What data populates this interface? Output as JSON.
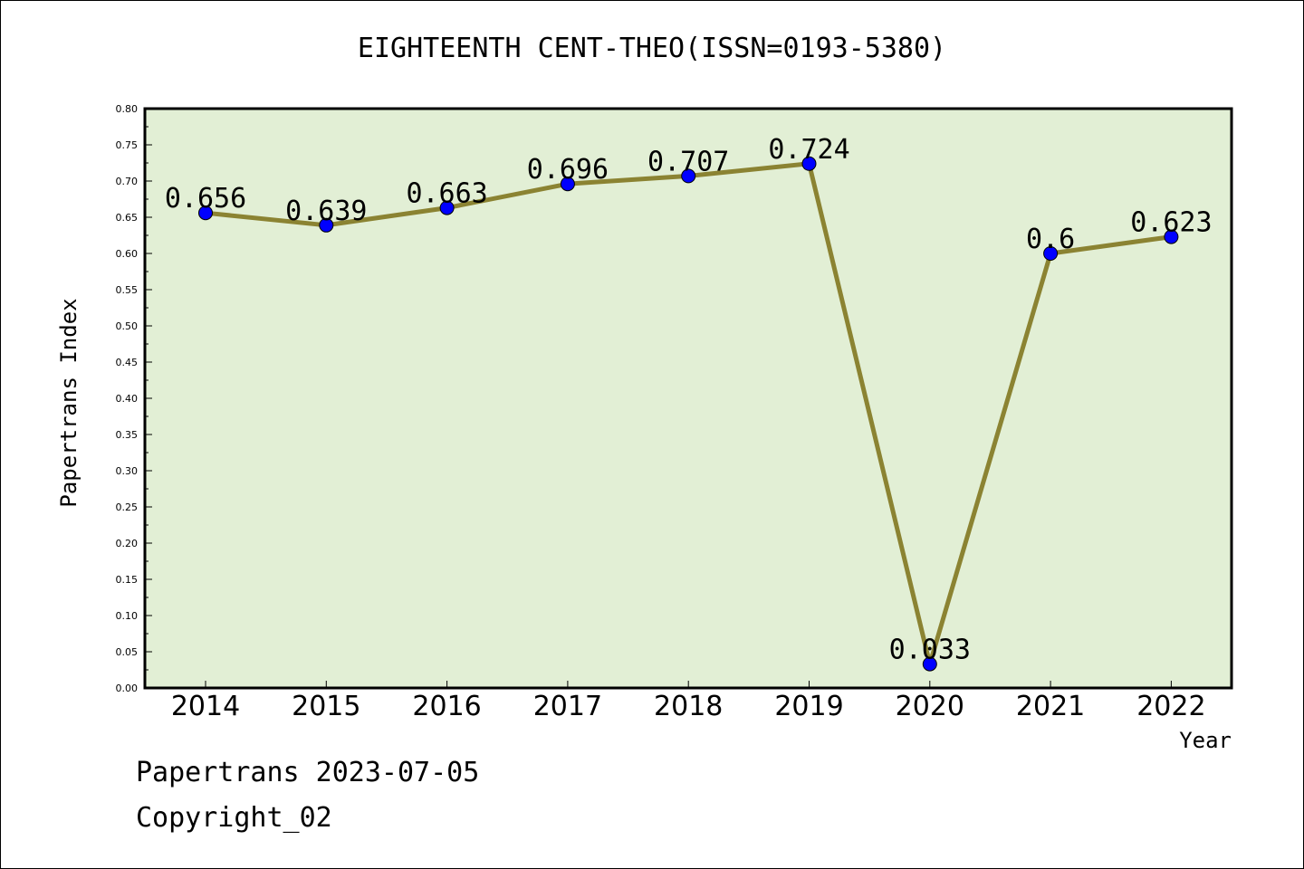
{
  "chart_data": {
    "type": "line",
    "title": "EIGHTEENTH CENT-THEO(ISSN=0193-5380)",
    "xlabel": "Year",
    "ylabel": "Papertrans Index",
    "categories": [
      "2014",
      "2015",
      "2016",
      "2017",
      "2018",
      "2019",
      "2020",
      "2021",
      "2022"
    ],
    "values": [
      0.656,
      0.639,
      0.663,
      0.696,
      0.707,
      0.724,
      0.033,
      0.6,
      0.623
    ],
    "data_labels": [
      "0.656",
      "0.639",
      "0.663",
      "0.696",
      "0.707",
      "0.724",
      "0.033",
      "0.6",
      "0.623"
    ],
    "ylim": [
      0,
      0.8
    ],
    "yticks": [
      "0.00",
      "0.05",
      "0.10",
      "0.15",
      "0.20",
      "0.25",
      "0.30",
      "0.35",
      "0.40",
      "0.45",
      "0.50",
      "0.55",
      "0.60",
      "0.65",
      "0.70",
      "0.75",
      "0.80"
    ],
    "grid": false,
    "colors": {
      "plot_bg": "#e2efd5",
      "line": "#8b8332",
      "marker": "#0000ff"
    }
  },
  "footer": {
    "line1": "Papertrans 2023-07-05",
    "line2": "Copyright_02"
  }
}
